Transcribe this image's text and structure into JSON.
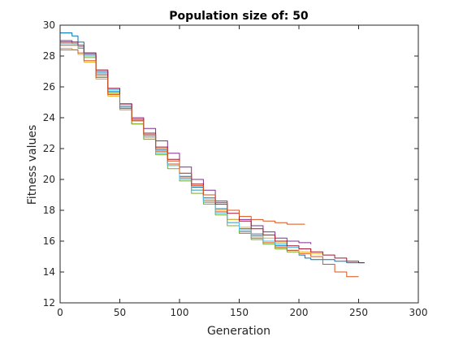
{
  "chart_data": {
    "type": "line",
    "title": "Population size of: 50",
    "xlabel": "Generation",
    "ylabel": "Fitness values",
    "xlim": [
      0,
      300
    ],
    "ylim": [
      12,
      30
    ],
    "xticks": [
      "0",
      "50",
      "100",
      "150",
      "200",
      "250",
      "300"
    ],
    "yticks": [
      "12",
      "14",
      "16",
      "18",
      "20",
      "22",
      "24",
      "26",
      "28",
      "30"
    ],
    "grid": false,
    "legend": "none",
    "series": [
      {
        "color": "#0072BD",
        "x": [
          0,
          5,
          10,
          15,
          20,
          30,
          40,
          50,
          60,
          70,
          80,
          90,
          100,
          110,
          120,
          130,
          140,
          150,
          160,
          170,
          180,
          190,
          200,
          205,
          210,
          220,
          230,
          240,
          250,
          255
        ],
        "y": [
          29.5,
          29.5,
          29.3,
          28.9,
          28.2,
          27.0,
          25.7,
          24.7,
          23.8,
          22.9,
          21.9,
          21.0,
          20.2,
          19.5,
          18.8,
          18.1,
          17.4,
          16.8,
          16.4,
          16.0,
          15.7,
          15.4,
          15.1,
          14.9,
          14.8,
          14.8,
          14.7,
          14.6,
          14.6,
          14.6
        ]
      },
      {
        "color": "#D95319",
        "x": [
          0,
          5,
          10,
          15,
          20,
          30,
          40,
          50,
          60,
          70,
          80,
          90,
          100,
          110,
          120,
          130,
          140,
          150,
          160,
          170,
          180,
          190,
          200,
          210,
          220,
          230,
          240,
          250
        ],
        "y": [
          28.7,
          28.7,
          28.7,
          28.5,
          28.0,
          26.8,
          25.6,
          24.6,
          23.6,
          22.8,
          21.8,
          21.0,
          20.1,
          19.3,
          18.6,
          17.9,
          17.2,
          16.6,
          16.2,
          15.9,
          15.6,
          15.4,
          15.2,
          15.0,
          14.5,
          14.0,
          13.7,
          13.7
        ]
      },
      {
        "color": "#EDB120",
        "x": [
          0,
          5,
          10,
          15,
          20,
          30,
          40,
          50,
          60,
          70,
          80,
          90,
          100,
          110,
          120,
          130,
          140,
          150,
          160,
          170,
          180,
          190,
          200,
          210,
          220
        ],
        "y": [
          28.5,
          28.5,
          28.4,
          28.1,
          27.6,
          26.5,
          25.4,
          24.5,
          23.6,
          22.7,
          21.7,
          20.9,
          20.0,
          19.3,
          18.7,
          18.0,
          17.4,
          16.9,
          16.5,
          16.2,
          15.9,
          15.6,
          15.3,
          15.2,
          15.2
        ]
      },
      {
        "color": "#7E2F8E",
        "x": [
          0,
          5,
          10,
          15,
          20,
          30,
          40,
          50,
          60,
          70,
          80,
          90,
          100,
          110,
          120,
          130,
          140,
          150,
          160,
          170,
          180,
          190,
          200,
          210
        ],
        "y": [
          29.0,
          29.0,
          28.9,
          28.6,
          28.1,
          26.9,
          25.9,
          24.9,
          24.0,
          23.3,
          22.5,
          21.7,
          20.8,
          20.0,
          19.3,
          18.6,
          18.0,
          17.4,
          17.0,
          16.6,
          16.2,
          16.0,
          15.9,
          15.8
        ]
      },
      {
        "color": "#77AC30",
        "x": [
          0,
          5,
          10,
          15,
          20,
          30,
          40,
          50,
          60,
          70,
          80,
          90,
          100,
          110,
          120,
          130,
          140,
          150,
          160,
          170,
          180,
          190,
          200
        ],
        "y": [
          28.9,
          28.9,
          28.8,
          28.5,
          27.9,
          26.7,
          25.6,
          24.6,
          23.6,
          22.6,
          21.6,
          20.7,
          19.9,
          19.1,
          18.4,
          17.7,
          17.0,
          16.5,
          16.1,
          15.8,
          15.5,
          15.3,
          15.1
        ]
      },
      {
        "color": "#4DBEEE",
        "x": [
          0,
          5,
          10,
          15,
          20,
          30,
          40,
          50,
          60,
          70,
          80,
          90,
          100,
          110,
          120,
          130,
          140,
          150,
          160,
          170,
          180,
          190,
          200,
          210
        ],
        "y": [
          28.8,
          28.8,
          28.8,
          28.6,
          28.0,
          26.9,
          25.8,
          24.8,
          23.8,
          22.8,
          21.7,
          20.9,
          20.0,
          19.3,
          18.5,
          17.8,
          17.2,
          16.7,
          16.3,
          16.0,
          15.8,
          15.6,
          15.5,
          15.4
        ]
      },
      {
        "color": "#A2142F",
        "x": [
          0,
          5,
          10,
          15,
          20,
          30,
          40,
          50,
          60,
          70,
          80,
          90,
          100,
          110,
          120,
          130,
          140,
          150,
          160,
          170,
          180,
          190,
          200,
          210,
          220,
          230,
          240,
          250,
          255
        ],
        "y": [
          28.9,
          28.9,
          28.9,
          28.7,
          28.2,
          27.1,
          25.9,
          24.9,
          23.9,
          23.0,
          22.1,
          21.3,
          20.4,
          19.7,
          19.0,
          18.4,
          17.8,
          17.3,
          16.8,
          16.4,
          16.0,
          15.7,
          15.5,
          15.3,
          15.1,
          14.9,
          14.7,
          14.6,
          14.6
        ]
      },
      {
        "color": "#D95319",
        "x": [
          0,
          5,
          10,
          15,
          20,
          30,
          40,
          50,
          60,
          70,
          80,
          90,
          100,
          110,
          120,
          130,
          140,
          150,
          160,
          170,
          180,
          190,
          200,
          205
        ],
        "y": [
          28.4,
          28.4,
          28.4,
          28.2,
          27.7,
          26.6,
          25.5,
          24.6,
          23.8,
          22.9,
          22.0,
          21.2,
          20.4,
          19.6,
          19.0,
          18.5,
          18.0,
          17.6,
          17.4,
          17.3,
          17.2,
          17.1,
          17.1,
          17.1
        ]
      }
    ]
  }
}
